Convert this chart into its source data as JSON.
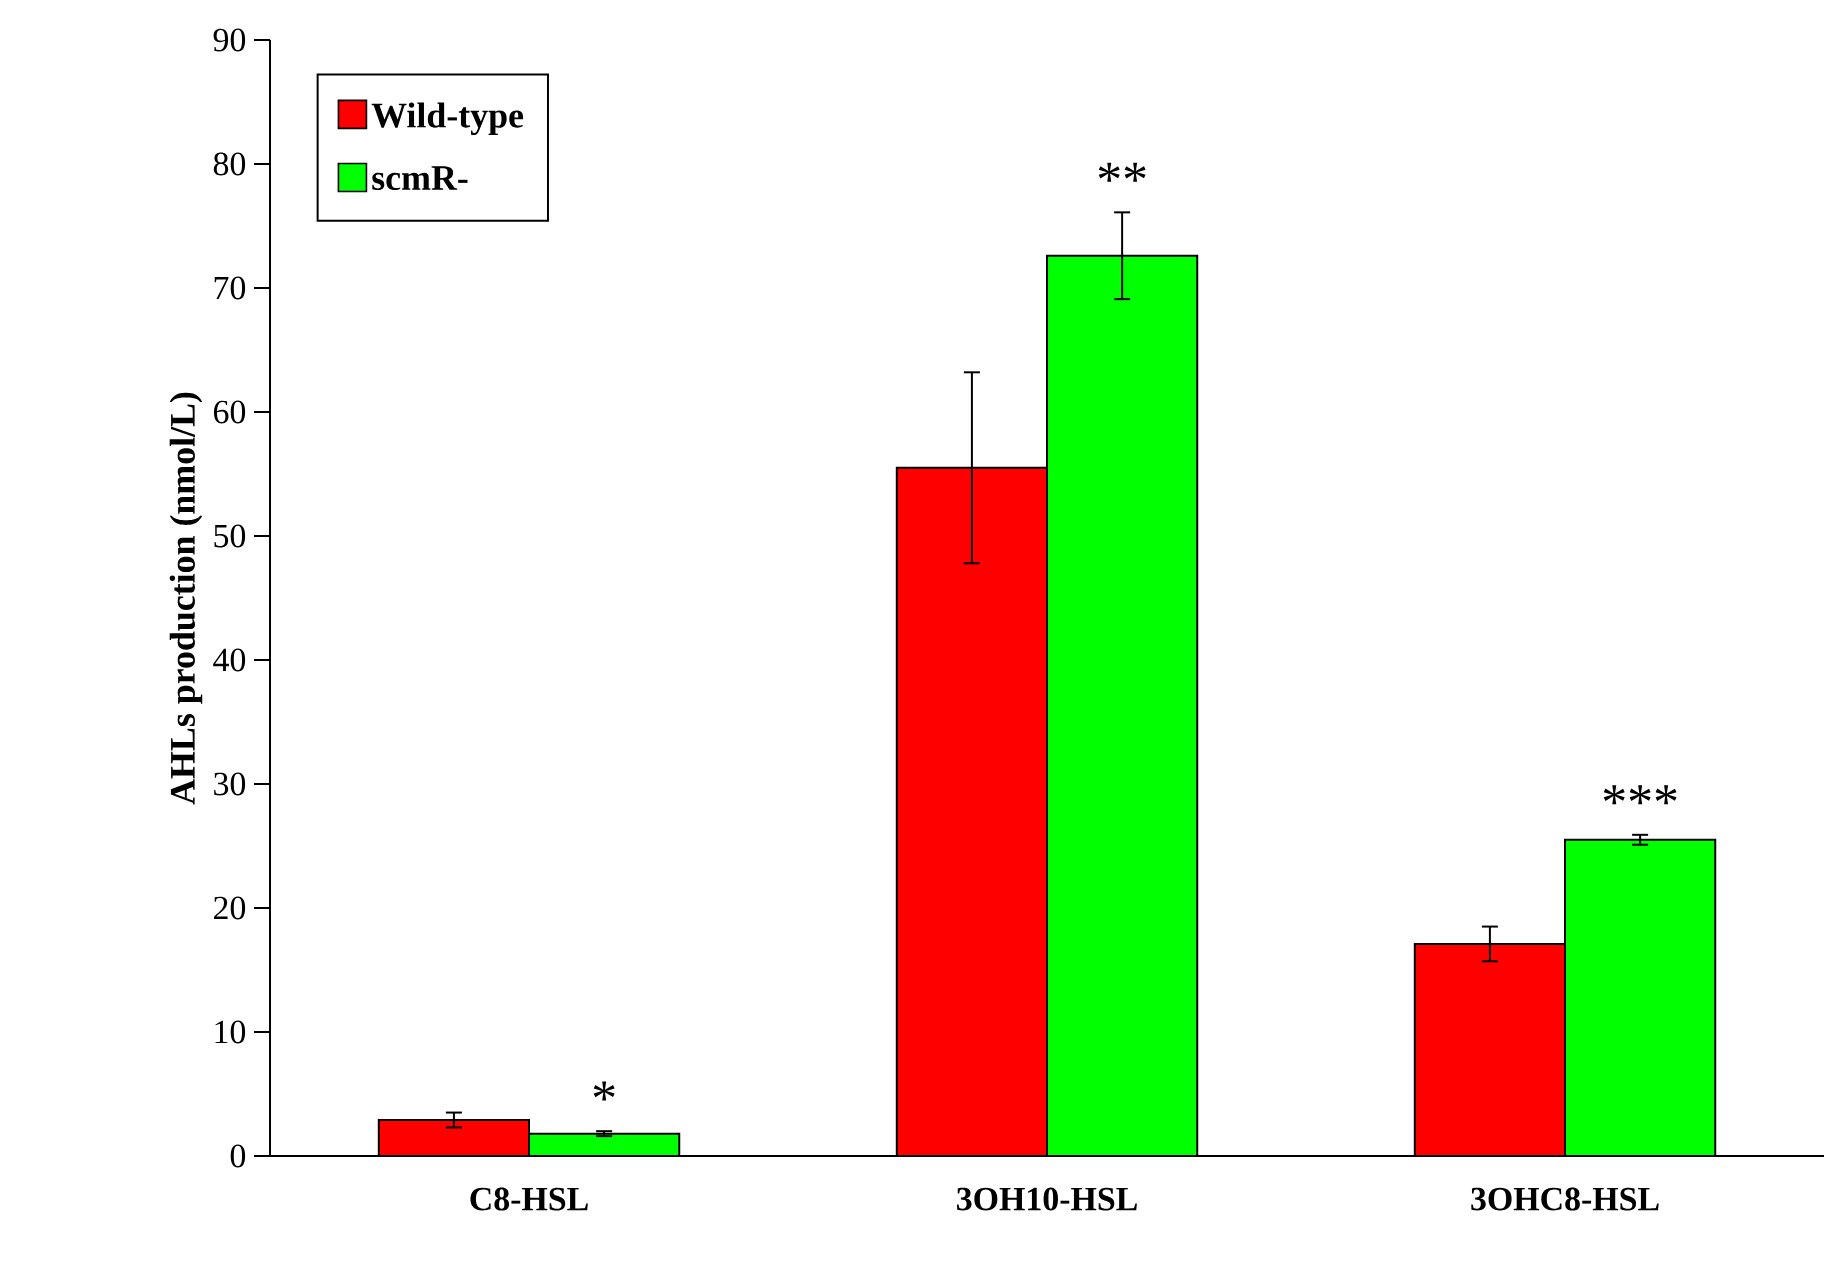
{
  "chart_data": {
    "type": "bar",
    "ylabel": "AHLs production (nmol/L)",
    "categories": [
      "C8-HSL",
      "3OH10-HSL",
      "3OHC8-HSL"
    ],
    "series": [
      {
        "name": "Wild-type",
        "color": "#ff0000",
        "values": [
          2.9,
          55.5,
          17.1
        ],
        "errors": [
          0.6,
          7.7,
          1.4
        ]
      },
      {
        "name": "scmR-",
        "color": "#00ff00",
        "values": [
          1.8,
          72.6,
          25.5
        ],
        "errors": [
          0.2,
          3.5,
          0.4
        ]
      }
    ],
    "ylim": [
      0,
      90
    ],
    "yticks": [
      0,
      10,
      20,
      30,
      40,
      50,
      60,
      70,
      80,
      90
    ],
    "legend": "top left",
    "annotations": [
      "*",
      "**",
      "***"
    ]
  }
}
